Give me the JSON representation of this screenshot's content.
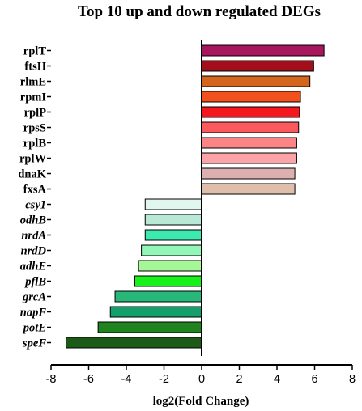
{
  "chart_data": {
    "type": "bar",
    "orientation": "horizontal",
    "title": "Top 10 up and down regulated DEGs",
    "xlabel": "log2(Fold Change)",
    "ylabel": "",
    "xlim": [
      -8,
      8
    ],
    "xticks": [
      "-8",
      "-6",
      "-4",
      "-2",
      "0",
      "2",
      "4",
      "6",
      "8"
    ],
    "grid": false,
    "legend": "none",
    "categories": [
      "rplT",
      "ftsH",
      "rlmE",
      "rpmI",
      "rplP",
      "rpsS",
      "rplB",
      "rplW",
      "dnaK",
      "fxsA",
      "csy1",
      "odhB",
      "nrdA",
      "nrdD",
      "adhE",
      "pflB",
      "grcA",
      "napF",
      "potE",
      "speF"
    ],
    "italic": [
      false,
      false,
      false,
      false,
      false,
      false,
      false,
      false,
      false,
      false,
      true,
      true,
      true,
      true,
      true,
      true,
      true,
      true,
      true,
      true
    ],
    "values": [
      6.5,
      5.95,
      5.75,
      5.25,
      5.2,
      5.15,
      5.05,
      5.05,
      4.95,
      4.95,
      -3.0,
      -3.0,
      -3.0,
      -3.2,
      -3.35,
      -3.55,
      -4.6,
      -4.85,
      -5.5,
      -7.2
    ],
    "colors": [
      "#a8175d",
      "#a30e1a",
      "#d3651c",
      "#f2501c",
      "#f4181e",
      "#fa5a5e",
      "#fb8486",
      "#fba3a6",
      "#ddb0b0",
      "#dfbfab",
      "#e1f6ee",
      "#b9e8d6",
      "#3ee9b0",
      "#94f5b9",
      "#a4f896",
      "#18f21a",
      "#27b879",
      "#159f6d",
      "#1f841f",
      "#1b5b17"
    ]
  }
}
